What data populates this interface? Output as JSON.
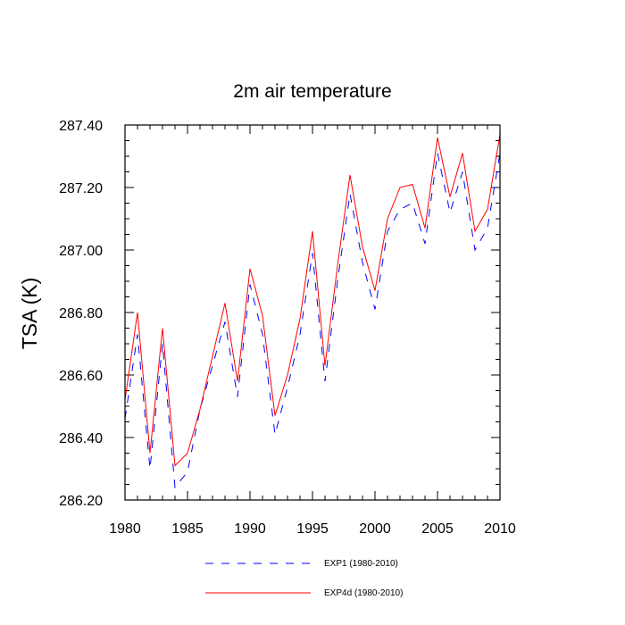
{
  "chart_data": {
    "type": "line",
    "title": "2m air temperature",
    "xlabel": "",
    "ylabel": "TSA  (K)",
    "xlim": [
      1980,
      2010
    ],
    "ylim": [
      286.2,
      287.4
    ],
    "x_ticks": [
      "1980",
      "1985",
      "1990",
      "1995",
      "2000",
      "2005",
      "2010"
    ],
    "y_ticks": [
      "286.20",
      "286.40",
      "286.60",
      "286.80",
      "287.00",
      "287.20",
      "287.40"
    ],
    "x": [
      1980,
      1981,
      1982,
      1983,
      1984,
      1985,
      1986,
      1987,
      1988,
      1989,
      1990,
      1991,
      1992,
      1993,
      1994,
      1995,
      1996,
      1997,
      1998,
      1999,
      2000,
      2001,
      2002,
      2003,
      2004,
      2005,
      2006,
      2007,
      2008,
      2009,
      2010
    ],
    "series": [
      {
        "name": "EXP1 (1980-2010)",
        "color": "#0000ff",
        "dash": "dashed",
        "values": [
          286.46,
          286.73,
          286.3,
          286.7,
          286.24,
          286.29,
          286.49,
          286.63,
          286.77,
          286.53,
          286.89,
          286.73,
          286.41,
          286.56,
          286.73,
          286.99,
          286.58,
          286.9,
          287.18,
          286.96,
          286.81,
          287.06,
          287.13,
          287.15,
          287.02,
          287.31,
          287.12,
          287.25,
          287.0,
          287.07,
          287.31
        ]
      },
      {
        "name": "EXP4d (1980-2010)",
        "color": "#ff0000",
        "dash": "solid",
        "values": [
          286.52,
          286.8,
          286.35,
          286.75,
          286.31,
          286.35,
          286.49,
          286.66,
          286.83,
          286.58,
          286.94,
          286.79,
          286.47,
          286.6,
          286.78,
          287.06,
          286.63,
          286.95,
          287.24,
          287.01,
          286.87,
          287.1,
          287.2,
          287.21,
          287.07,
          287.36,
          287.17,
          287.31,
          287.06,
          287.13,
          287.37
        ]
      }
    ],
    "legend_position": "bottom-center"
  }
}
